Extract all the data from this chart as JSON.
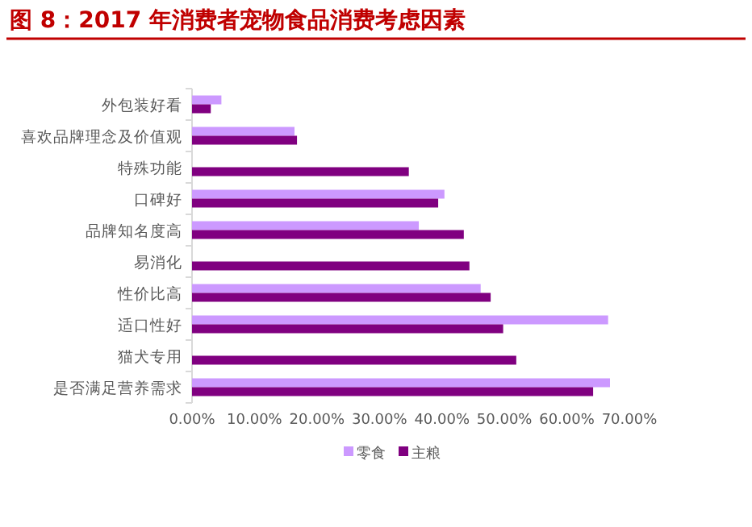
{
  "chart_data": {
    "type": "bar",
    "orientation": "horizontal",
    "title": "图 8：2017 年消费者宠物食品消费考虑因素",
    "categories": [
      "外包装好看",
      "喜欢品牌理念及价值观",
      "特殊功能",
      "口碑好",
      "品牌知名度高",
      "易消化",
      "性价比高",
      "适口性好",
      "猫犬专用",
      "是否满足营养需求"
    ],
    "series": [
      {
        "name": "零食",
        "color": "#cc99ff",
        "values": [
          4.7,
          16.4,
          null,
          40.4,
          36.3,
          null,
          46.2,
          66.6,
          null,
          66.9
        ]
      },
      {
        "name": "主粮",
        "color": "#800080",
        "values": [
          3.0,
          16.8,
          34.7,
          39.4,
          43.5,
          44.4,
          47.8,
          49.8,
          51.9,
          64.2
        ]
      }
    ],
    "xlim": [
      0,
      70
    ],
    "xticks": [
      {
        "value": 0,
        "label": "0.00%"
      },
      {
        "value": 10,
        "label": "10.00%"
      },
      {
        "value": 20,
        "label": "20.00%"
      },
      {
        "value": 30,
        "label": "30.00%"
      },
      {
        "value": 40,
        "label": "40.00%"
      },
      {
        "value": 50,
        "label": "50.00%"
      },
      {
        "value": 60,
        "label": "60.00%"
      },
      {
        "value": 70,
        "label": "70.00%"
      }
    ],
    "grid": false,
    "legend": "bottom"
  }
}
